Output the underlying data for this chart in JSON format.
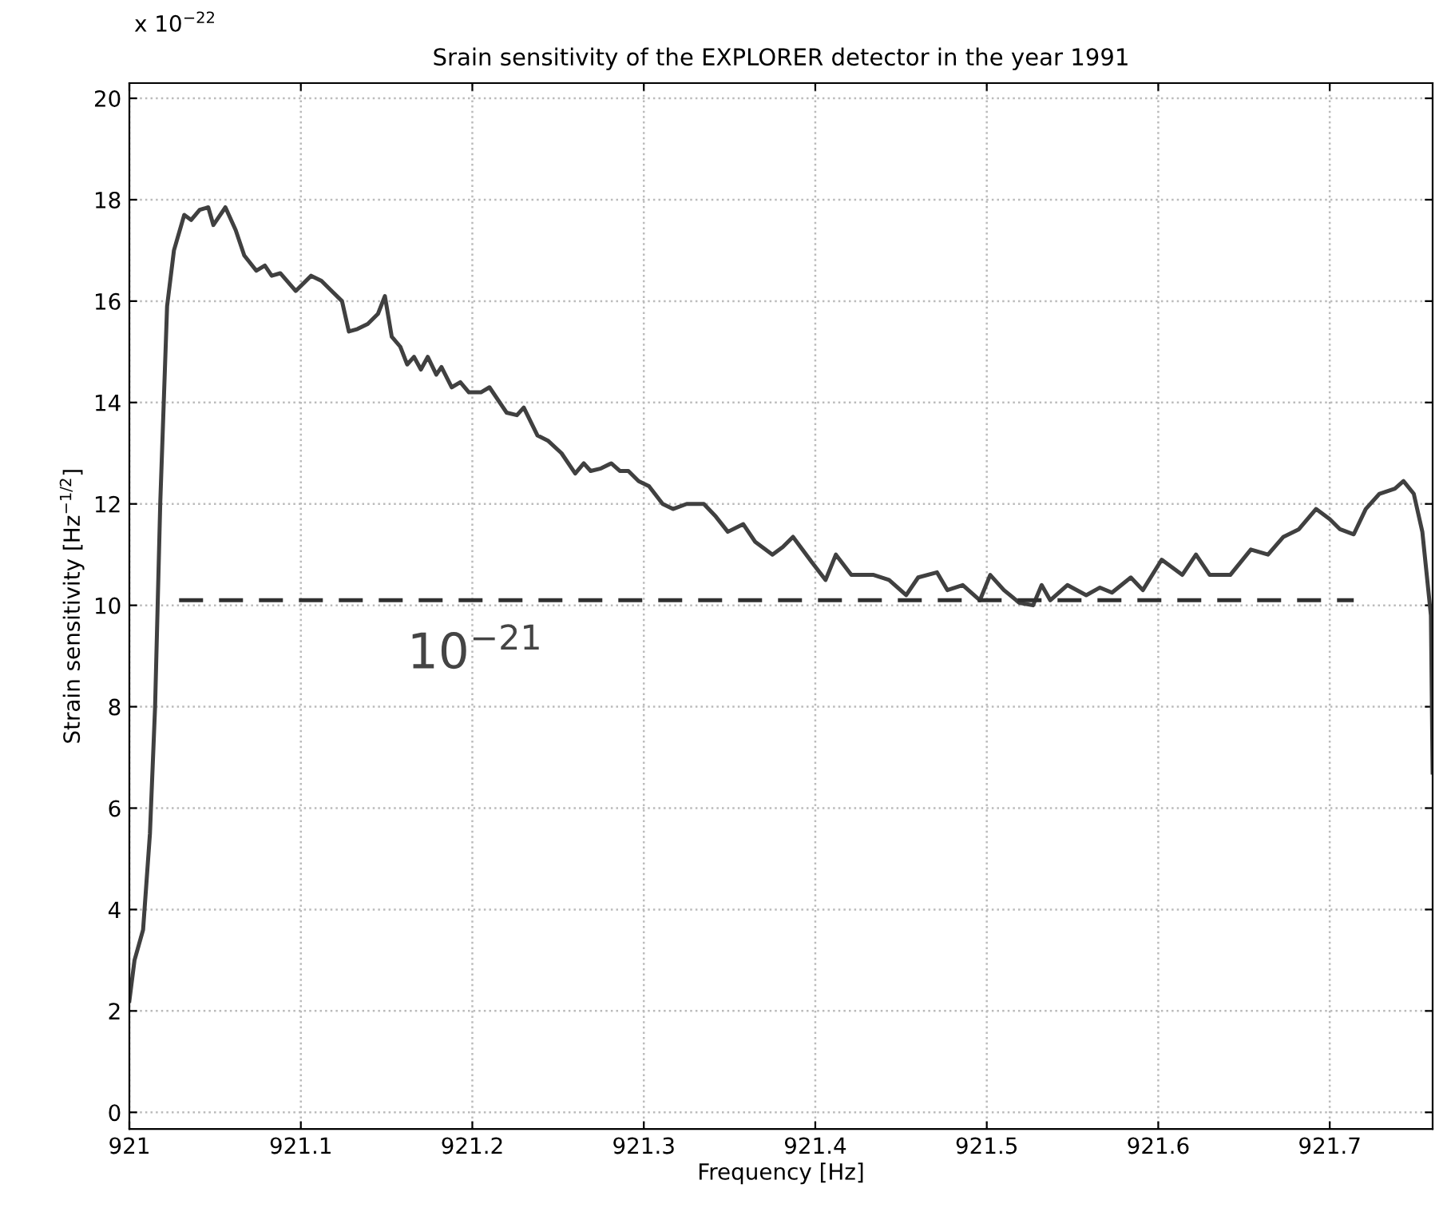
{
  "chart_data": {
    "type": "line",
    "title": "Srain sensitivity of the EXPLORER detector in the year 1991",
    "xlabel": "Frequency [Hz]",
    "ylabel": "Strain sensitivity [Hz$^{−1/2}$]",
    "annotations": [
      "x 10$^{−22}$",
      "10$^{−21}$"
    ],
    "series": [
      {
        "color": "#404040",
        "x": [
          921.0,
          921.003,
          921.008,
          921.012,
          921.015,
          921.018,
          921.022,
          921.026,
          921.032,
          921.036,
          921.041,
          921.046,
          921.049,
          921.052,
          921.056,
          921.062,
          921.067,
          921.074,
          921.079,
          921.083,
          921.088,
          921.097,
          921.106,
          921.112,
          921.118,
          921.124,
          921.128,
          921.133,
          921.139,
          921.145,
          921.149,
          921.153,
          921.158,
          921.162,
          921.166,
          921.17,
          921.174,
          921.179,
          921.182,
          921.188,
          921.193,
          921.198,
          921.205,
          921.21,
          921.22,
          921.226,
          921.23,
          921.238,
          921.244,
          921.252,
          921.26,
          921.265,
          921.269,
          921.275,
          921.281,
          921.286,
          921.291,
          921.297,
          921.303,
          921.311,
          921.317,
          921.325,
          921.335,
          921.342,
          921.349,
          921.358,
          921.365,
          921.375,
          921.381,
          921.387,
          921.398,
          921.406,
          921.412,
          921.421,
          921.434,
          921.443,
          921.453,
          921.46,
          921.471,
          921.477,
          921.486,
          921.496,
          921.502,
          921.51,
          921.519,
          921.527,
          921.532,
          921.537,
          921.547,
          921.558,
          921.566,
          921.573,
          921.584,
          921.591,
          921.602,
          921.614,
          921.622,
          921.63,
          921.642,
          921.654,
          921.664,
          921.673,
          921.682,
          921.692,
          921.7,
          921.706,
          921.714,
          921.721,
          921.729,
          921.738,
          921.743,
          921.749,
          921.754,
          921.759,
          921.76
        ],
        "values": [
          2.2,
          3.0,
          3.6,
          5.5,
          8.0,
          12.0,
          15.9,
          17.0,
          17.7,
          17.6,
          17.8,
          17.85,
          17.5,
          17.65,
          17.85,
          17.4,
          16.9,
          16.6,
          16.7,
          16.5,
          16.55,
          16.2,
          16.5,
          16.4,
          16.2,
          16.0,
          15.4,
          15.45,
          15.55,
          15.75,
          16.1,
          15.3,
          15.1,
          14.75,
          14.9,
          14.65,
          14.9,
          14.55,
          14.7,
          14.3,
          14.4,
          14.2,
          14.2,
          14.3,
          13.8,
          13.75,
          13.9,
          13.35,
          13.25,
          13.0,
          12.6,
          12.8,
          12.65,
          12.7,
          12.8,
          12.65,
          12.65,
          12.45,
          12.35,
          12.0,
          11.9,
          12.0,
          12.0,
          11.75,
          11.45,
          11.6,
          11.25,
          11.0,
          11.15,
          11.35,
          10.85,
          10.5,
          11.0,
          10.6,
          10.6,
          10.5,
          10.2,
          10.55,
          10.65,
          10.3,
          10.4,
          10.1,
          10.6,
          10.3,
          10.05,
          10.0,
          10.4,
          10.1,
          10.4,
          10.2,
          10.35,
          10.25,
          10.55,
          10.3,
          10.9,
          10.6,
          11.0,
          10.6,
          10.6,
          11.1,
          11.0,
          11.35,
          11.5,
          11.9,
          11.7,
          11.5,
          11.4,
          11.9,
          12.2,
          12.3,
          12.45,
          12.2,
          11.45,
          9.8,
          6.7
        ]
      },
      {
        "type": "line",
        "color": "#303030",
        "line_style": "dashed",
        "x": [
          921.029,
          921.714
        ],
        "values": [
          10.1,
          10.1
        ]
      }
    ],
    "xlim": [
      921,
      921.76
    ],
    "ylim": [
      -0.33,
      20.3
    ],
    "xticks": [
      921,
      921.1,
      921.2,
      921.3,
      921.4,
      921.5,
      921.6,
      921.7
    ],
    "yticks": [
      0,
      2,
      4,
      6,
      8,
      10,
      12,
      14,
      16,
      18,
      20
    ],
    "grid": true,
    "legend": false,
    "marker": "none",
    "line_style": "solid"
  }
}
